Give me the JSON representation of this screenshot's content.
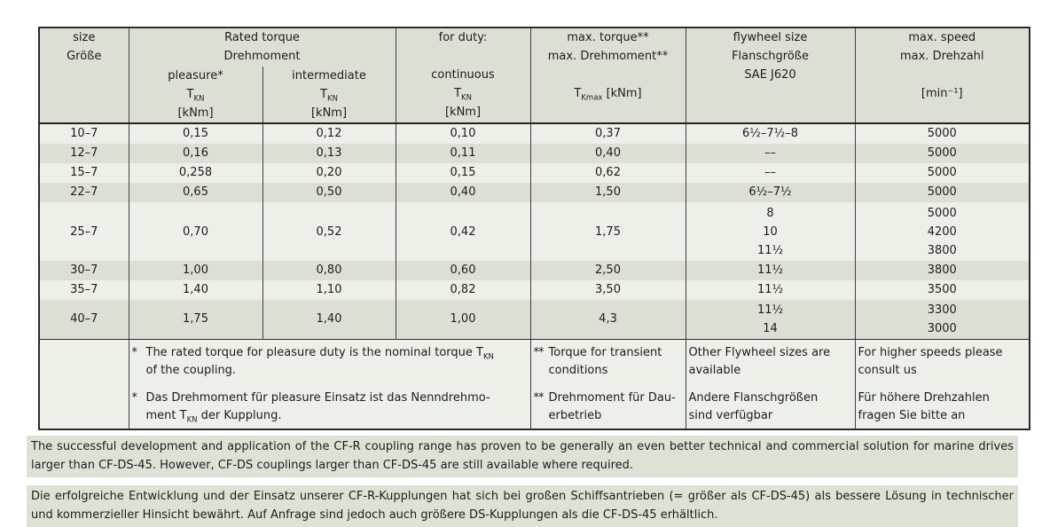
{
  "colors": {
    "header_bg": "#dce0d4",
    "row_light": "#edf0e8",
    "row_dark": "#dce0d4",
    "note_bg": "#dde3d4",
    "border": "#2b2b2b",
    "text": "#1c1c1c"
  },
  "table": {
    "header": {
      "size_l1": "size",
      "size_l2": "Größe",
      "rated_l1": "Rated torque",
      "rated_l2": "Drehmoment",
      "pleasure_label": "pleasure*",
      "intermediate_label": "intermediate",
      "tkn_base": "T",
      "tkn_sub": "KN",
      "kNm_unit": "[kNm]",
      "duty_l1": "for duty:",
      "duty_label": "continuous",
      "maxt_l1": "max. torque**",
      "maxt_l2": "max. Drehmoment**",
      "tkmax_base": "T",
      "tkmax_sub": "Kmax",
      "tkmax_unit": " [kNm]",
      "fly_l1": "flywheel size",
      "fly_l2": "Flanschgröße",
      "fly_l3": "SAE J620",
      "speed_l1": "max. speed",
      "speed_l2": "max. Drehzahl",
      "speed_unit": "[min⁻¹]"
    },
    "rows": [
      {
        "size": "10–7",
        "pleasure": "0,15",
        "intermediate": "0,12",
        "continuous": "0,10",
        "max_torque": "0,37",
        "flywheel": [
          "6½–7½–8"
        ],
        "speed": [
          "5000"
        ],
        "shade": "light"
      },
      {
        "size": "12–7",
        "pleasure": "0,16",
        "intermediate": "0,13",
        "continuous": "0,11",
        "max_torque": "0,40",
        "flywheel": [
          "––"
        ],
        "speed": [
          "5000"
        ],
        "shade": "dark"
      },
      {
        "size": "15–7",
        "pleasure": "0,258",
        "intermediate": "0,20",
        "continuous": "0,15",
        "max_torque": "0,62",
        "flywheel": [
          "––"
        ],
        "speed": [
          "5000"
        ],
        "shade": "light"
      },
      {
        "size": "22–7",
        "pleasure": "0,65",
        "intermediate": "0,50",
        "continuous": "0,40",
        "max_torque": "1,50",
        "flywheel": [
          "6½–7½"
        ],
        "speed": [
          "5000"
        ],
        "shade": "dark"
      },
      {
        "size": "25–7",
        "pleasure": "0,70",
        "intermediate": "0,52",
        "continuous": "0,42",
        "max_torque": "1,75",
        "flywheel": [
          "8",
          "10",
          "11½"
        ],
        "speed": [
          "5000",
          "4200",
          "3800"
        ],
        "shade": "light"
      },
      {
        "size": "30–7",
        "pleasure": "1,00",
        "intermediate": "0,80",
        "continuous": "0,60",
        "max_torque": "2,50",
        "flywheel": [
          "11½"
        ],
        "speed": [
          "3800"
        ],
        "shade": "dark"
      },
      {
        "size": "35–7",
        "pleasure": "1,40",
        "intermediate": "1,10",
        "continuous": "0,82",
        "max_torque": "3,50",
        "flywheel": [
          "11½"
        ],
        "speed": [
          "3500"
        ],
        "shade": "light"
      },
      {
        "size": "40–7",
        "pleasure": "1,75",
        "intermediate": "1,40",
        "continuous": "1,00",
        "max_torque": "4,3",
        "flywheel": [
          "11½",
          "14"
        ],
        "speed": [
          "3300",
          "3000"
        ],
        "shade": "dark"
      }
    ],
    "footnotes": {
      "star": "*",
      "dstar": "**",
      "en_line1": "The rated torque for pleasure duty is the nominal torque T",
      "en_sub": "KN",
      "en_line2": "of the coupling.",
      "de_line1": "Das Drehmoment für pleasure Einsatz ist das Nenndrehmo-",
      "de_line2_pre": "ment T",
      "de_sub": "KN",
      "de_line2_post": " der Kupplung.",
      "maxt_en": "Torque for transient\nconditions",
      "maxt_de": "Drehmoment für Dau-\nerbetrieb",
      "fly_en": "Other Flywheel sizes are\navailable",
      "fly_de": "Andere Flanschgrößen\nsind verfügbar",
      "speed_en": "For higher speeds please\nconsult us",
      "speed_de": "Für höhere Drehzahlen\nfragen Sie bitte an"
    }
  },
  "paragraphs": {
    "en": "The successful development and application of the CF-R coupling range has proven to be generally an even better technical and commercial solution for marine drives larger than CF-DS-45. However, CF-DS couplings larger than CF-DS-45 are still available where required.",
    "de": "Die erfolgreiche Entwicklung und der Einsatz unserer CF-R-Kupplungen hat sich bei großen Schiffsantrieben (= größer als CF-DS-45) als bessere Lösung in technischer und kommerzieller Hinsicht bewährt. Auf Anfrage sind jedoch auch größere DS-Kupplungen als die CF-DS-45 erhältlich."
  }
}
